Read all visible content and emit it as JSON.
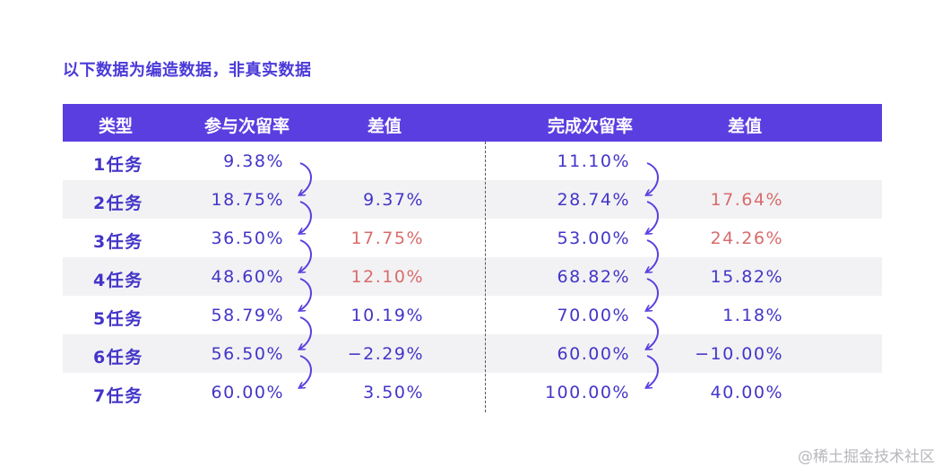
{
  "title": "以下数据为编造数据，非真实数据",
  "header": {
    "type": "类型",
    "retention1": "参与次留率",
    "diff1": "差值",
    "retention2": "完成次留率",
    "diff2": "差值"
  },
  "rows": [
    {
      "type": "1任务",
      "r1": "9.38%",
      "d1": "",
      "r2": "11.10%",
      "d2": ""
    },
    {
      "type": "2任务",
      "r1": "18.75%",
      "d1": "9.37%",
      "r2": "28.74%",
      "d2": "17.64%"
    },
    {
      "type": "3任务",
      "r1": "36.50%",
      "d1": "17.75%",
      "r2": "53.00%",
      "d2": "24.26%"
    },
    {
      "type": "4任务",
      "r1": "48.60%",
      "d1": "12.10%",
      "r2": "68.82%",
      "d2": "15.82%"
    },
    {
      "type": "5任务",
      "r1": "58.79%",
      "d1": "10.19%",
      "r2": "70.00%",
      "d2": "1.18%"
    },
    {
      "type": "6任务",
      "r1": "56.50%",
      "d1": "-2.29%",
      "r2": "60.00%",
      "d2": "-10.00%"
    },
    {
      "type": "7任务",
      "r1": "60.00%",
      "d1": "3.50%",
      "r2": "100.00%",
      "d2": "40.00%"
    }
  ],
  "highlight": {
    "d1": [
      false,
      false,
      true,
      true,
      false,
      false,
      false
    ],
    "d2": [
      false,
      true,
      true,
      false,
      false,
      false,
      false
    ]
  },
  "colors": {
    "header_bg": "#5b3ee0",
    "text": "#4335c8",
    "highlight": "#d96b6b",
    "alt_row": "#f2f2f4"
  },
  "watermark": "@稀土掘金技术社区"
}
